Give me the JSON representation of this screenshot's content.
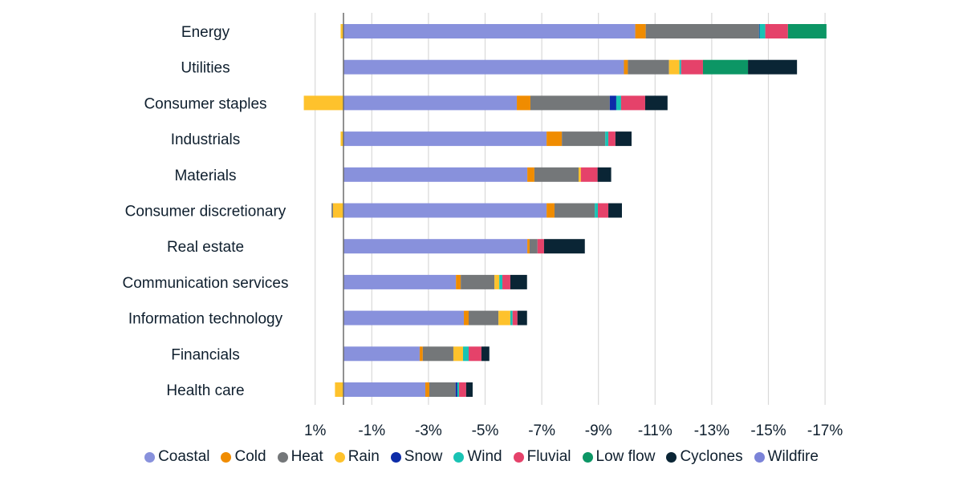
{
  "chart_data": {
    "type": "bar",
    "orientation": "horizontal",
    "stacked": true,
    "title": "",
    "xlabel": "",
    "ylabel": "",
    "xlim": [
      1,
      -17
    ],
    "x_ticks": [
      1,
      -1,
      -3,
      -5,
      -7,
      -9,
      -11,
      -13,
      -15,
      -17
    ],
    "x_tick_labels": [
      "1%",
      "-1%",
      "-3%",
      "-5%",
      "-7%",
      "-9%",
      "-11%",
      "-13%",
      "-15%",
      "-17%"
    ],
    "grid": true,
    "legend_position": "bottom",
    "categories": [
      "Energy",
      "Utilities",
      "Consumer staples",
      "Industrials",
      "Materials",
      "Consumer discretionary",
      "Real estate",
      "Communication services",
      "Information technology",
      "Financials",
      "Health care"
    ],
    "series": [
      {
        "name": "Coastal",
        "color": "#8891dc",
        "values": [
          -10.3,
          -9.9,
          -6.12,
          -7.17,
          -6.49,
          -7.17,
          -6.49,
          -3.97,
          -4.25,
          -2.69,
          -2.89
        ]
      },
      {
        "name": "Cold",
        "color": "#f08c00",
        "values": [
          -0.37,
          -0.14,
          -0.48,
          -0.54,
          -0.25,
          -0.28,
          -0.08,
          -0.17,
          -0.17,
          -0.11,
          -0.14
        ]
      },
      {
        "name": "Heat",
        "color": "#747779",
        "values": [
          -4.0,
          -1.45,
          -2.8,
          -1.53,
          -1.56,
          -1.42,
          -0.28,
          -1.19,
          -1.05,
          -1.08,
          -0.93
        ]
      },
      {
        "name": "Rain",
        "color": "#fec22c",
        "values": [
          0.1,
          -0.37,
          1.4,
          0.1,
          -0.08,
          0.37,
          0,
          -0.17,
          -0.42,
          -0.34,
          0.3
        ]
      },
      {
        "name": "Snow",
        "color": "#0d2ca8",
        "values": [
          -0.02,
          0,
          -0.23,
          0,
          0,
          0,
          0,
          0,
          0,
          0,
          -0.06
        ]
      },
      {
        "name": "Wind",
        "color": "#19c3b4",
        "values": [
          -0.2,
          -0.06,
          -0.17,
          -0.11,
          0,
          -0.11,
          0,
          -0.11,
          -0.08,
          -0.2,
          -0.06
        ]
      },
      {
        "name": "Fluvial",
        "color": "#e5426a",
        "values": [
          -0.8,
          -0.77,
          -0.85,
          -0.25,
          -0.59,
          -0.37,
          -0.23,
          -0.28,
          -0.17,
          -0.45,
          -0.25
        ]
      },
      {
        "name": "Low flow",
        "color": "#0c9665",
        "values": [
          -1.36,
          -1.59,
          0,
          0,
          0,
          0,
          0,
          0,
          0,
          0,
          0
        ]
      },
      {
        "name": "Cyclones",
        "color": "#0a2535",
        "values": [
          0,
          -1.73,
          -0.79,
          -0.57,
          -0.48,
          -0.48,
          -1.44,
          -0.59,
          -0.34,
          -0.28,
          -0.23
        ]
      },
      {
        "name": "Wildfire",
        "color": "#7b83d8",
        "values": [
          0,
          0,
          0,
          0,
          0,
          0,
          0,
          0,
          0,
          0,
          0
        ]
      }
    ],
    "extra_positive_segments": [
      {
        "category": "Consumer discretionary",
        "series": "Heat",
        "value": 0.05
      }
    ]
  }
}
